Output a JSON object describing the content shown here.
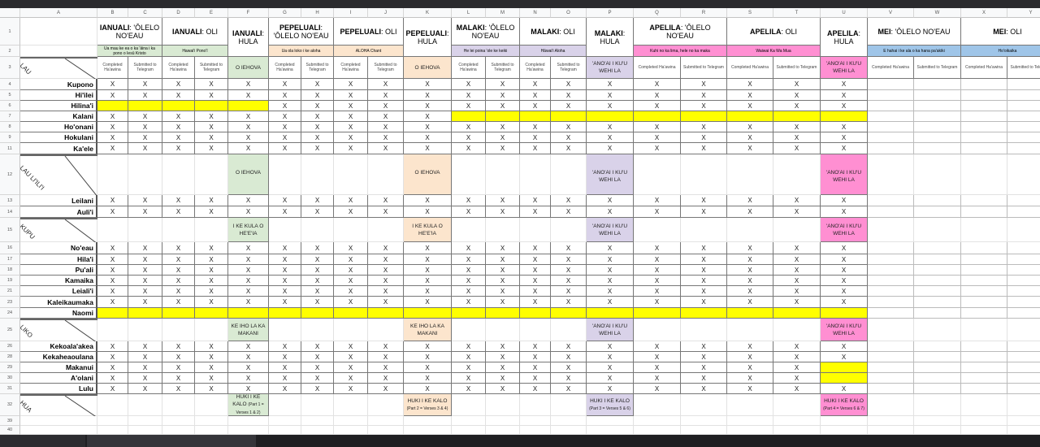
{
  "column_letters": [
    "A",
    "B",
    "C",
    "D",
    "E",
    "F",
    "G",
    "H",
    "I",
    "J",
    "K",
    "L",
    "M",
    "N",
    "O",
    "P",
    "Q",
    "R",
    "S",
    "T",
    "U",
    "V",
    "W",
    "X",
    "Y"
  ],
  "row_numbers": [
    "1",
    "2",
    "3",
    "4",
    "5",
    "6",
    "7",
    "8",
    "9",
    "11",
    "12",
    "13",
    "14",
    "15",
    "16",
    "17",
    "18",
    "19",
    "21",
    "23",
    "24",
    "25",
    "26",
    "28",
    "29",
    "30",
    "31",
    "32",
    "39",
    "40"
  ],
  "colors": {
    "green": "#d9ead3",
    "peach": "#fce5cd",
    "lavender": "#d9d2e9",
    "pink": "#ff8fd2",
    "blue": "#9fc5e8",
    "yellow": "#ffff00"
  },
  "headers": [
    {
      "cols": "B:C",
      "month": "IANUALI",
      "topic": ": 'ŌLELO NO'EAU",
      "subtitle": "Ua mau ke ea o ka 'āina i ka pono o Iesū Kristo",
      "color": "green"
    },
    {
      "cols": "D:E",
      "month": "IANUALI",
      "topic": ": OLI",
      "subtitle": "Hawai'i Pono'ī",
      "color": "green"
    },
    {
      "cols": "F",
      "month": "IANUALI",
      "topic": ": HULA",
      "hula": true,
      "color": "green"
    },
    {
      "cols": "G:H",
      "month": "PEPELUALI",
      "topic": ": 'ŌLELO NO'EAU",
      "subtitle": "Ua ola loko i ke aloha",
      "color": "peach"
    },
    {
      "cols": "I:J",
      "month": "PEPELUALI",
      "topic": ": OLI",
      "subtitle": "ALOHA Chant",
      "color": "peach"
    },
    {
      "cols": "K",
      "month": "PEPELUALI",
      "topic": ": HULA",
      "hula": true,
      "color": "peach"
    },
    {
      "cols": "L:M",
      "month": "MALAKI",
      "topic": ": 'ŌLELO NO'EAU",
      "subtitle": "He lei poina 'ole ke keiki",
      "color": "lavender"
    },
    {
      "cols": "N:O",
      "month": "MALAKI",
      "topic": ": OLI",
      "subtitle": "Hāwai'i Aloha",
      "color": "lavender"
    },
    {
      "cols": "P",
      "month": "MALAKI",
      "topic": ": HULA",
      "hula": true,
      "color": "lavender"
    },
    {
      "cols": "Q:R",
      "month": "APELILA",
      "topic": ": 'ŌLELO NO'EAU",
      "subtitle": "Kuhi no ka lima, hele no ka maka",
      "color": "pink"
    },
    {
      "cols": "S:T",
      "month": "APELILA",
      "topic": ": OLI",
      "subtitle": "Waiwai Ka Wa Mua",
      "color": "pink"
    },
    {
      "cols": "U",
      "month": "APELILA",
      "topic": ": HULA",
      "hula": true,
      "color": "pink"
    },
    {
      "cols": "V:W",
      "month": "MEI",
      "topic": ": 'ŌLELO NO'EAU",
      "subtitle": "E hahai i ke ala o ka hana pa'akiki",
      "color": "blue"
    },
    {
      "cols": "X:Y",
      "month": "MEI",
      "topic": ": OLI",
      "subtitle": "Ho'oikaika",
      "color": "blue"
    }
  ],
  "sub_headers": {
    "completed": "Completed Ha'awina",
    "submitted": "Submitted to Telegram"
  },
  "groups": [
    {
      "label": "LAU",
      "hula": [
        {
          "text": "O IEHOVA"
        },
        {
          "text": "O IEHOVA"
        },
        {
          "text": "'ANO'AI I KU'U WEHI LA"
        },
        {
          "text": "'ANO'AI I KU'U WEHI LA"
        }
      ],
      "students": [
        {
          "name": "Kupono",
          "marked": "B:U",
          "highlighted": ""
        },
        {
          "name": "Hi'ilei",
          "marked": "B:U",
          "highlighted": ""
        },
        {
          "name": "Hilina'i",
          "marked": "G:U",
          "highlighted": "B:F"
        },
        {
          "name": "Kalani",
          "marked": "B:K",
          "highlighted": "L:U"
        },
        {
          "name": "Ho'onani",
          "marked": "B:U",
          "highlighted": ""
        },
        {
          "name": "Hokulani",
          "marked": "B:U",
          "highlighted": ""
        },
        {
          "name": "Ka'ele",
          "marked": "B:U",
          "highlighted": ""
        }
      ]
    },
    {
      "label": "LAU LI'ILI'I",
      "hula": [
        {
          "text": "O IEHOVA"
        },
        {
          "text": "O IEHOVA"
        },
        {
          "text": "'ANO'AI I KU'U WEHI LA"
        },
        {
          "text": "'ANO'AI I KU'U WEHI LA"
        }
      ],
      "students": [
        {
          "name": "Leilani",
          "marked": "B:U",
          "highlighted": ""
        },
        {
          "name": "Auli'i",
          "marked": "B:U",
          "highlighted": ""
        }
      ]
    },
    {
      "label": "KUPU",
      "hula": [
        {
          "text": "I KE KULA O HE'E'IA"
        },
        {
          "text": "I KE KULA O HE'E'IA"
        },
        {
          "text": "'ANO'AI I KU'U WEHI LA"
        },
        {
          "text": "'ANO'AI I KU'U WEHI LA"
        }
      ],
      "students": [
        {
          "name": "No'eau",
          "marked": "B:U",
          "highlighted": ""
        },
        {
          "name": "Hila'i",
          "marked": "B:U",
          "highlighted": ""
        },
        {
          "name": "Pu'ali",
          "marked": "B:U",
          "highlighted": ""
        },
        {
          "name": "Kamaika",
          "marked": "B:U",
          "highlighted": ""
        },
        {
          "name": "Leiali'i",
          "marked": "B:U",
          "highlighted": ""
        },
        {
          "name": "Kaleikaumaka",
          "marked": "B:U",
          "highlighted": ""
        },
        {
          "name": "Naomi",
          "marked": "",
          "highlighted": "B:U"
        }
      ]
    },
    {
      "label": "LIKO",
      "hula": [
        {
          "text": "KE IHO LA KA MAKANI"
        },
        {
          "text": "KE IHO LA KA MAKANI"
        },
        {
          "text": "'ANO'AI I KU'U WEHI LA"
        },
        {
          "text": "'ANO'AI I KU'U WEHI LA"
        }
      ],
      "students": [
        {
          "name": "Kekoala'akea",
          "marked": "B:U",
          "highlighted": ""
        },
        {
          "name": "Kekaheaoulana",
          "marked": "B:U",
          "highlighted": ""
        },
        {
          "name": "Makanui",
          "marked": "B:T",
          "highlighted": "U"
        },
        {
          "name": "A'olani",
          "marked": "B:T",
          "highlighted": "U"
        },
        {
          "name": "Lulu",
          "marked": "B:U",
          "highlighted": ""
        }
      ]
    },
    {
      "label": "HUA",
      "hula": [
        {
          "text": "HUKI I KE KALO",
          "note": "(Part 1 = Verses 1 & 2)"
        },
        {
          "text": "HUKI I KE KALO",
          "note": "(Part 2 = Verses 3 & 4)"
        },
        {
          "text": "HUKI I KE KALO",
          "note": "(Part 3 = Verses 5 & 6)"
        },
        {
          "text": "HUKI I KE KALO",
          "note": "(Part 4 = Verses 6 & 7)"
        }
      ],
      "students": []
    }
  ],
  "mark_symbol": "X"
}
